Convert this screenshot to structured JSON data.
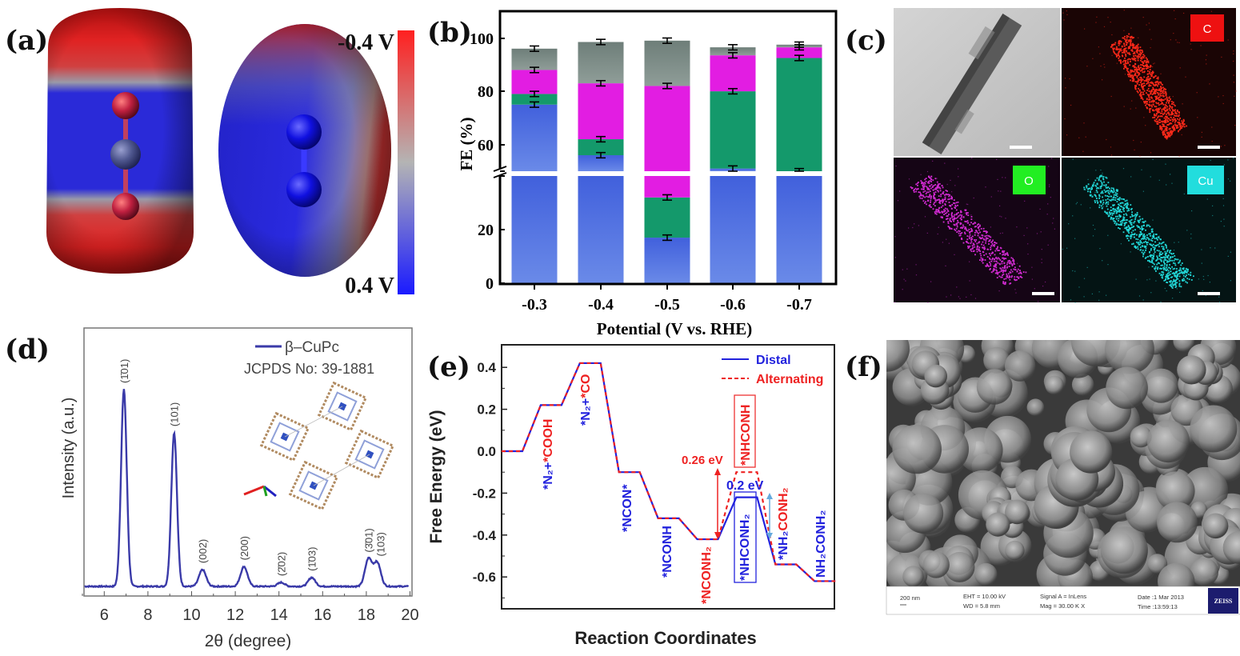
{
  "panels": {
    "a": {
      "label": "(a)",
      "colorbar": {
        "top_label": "-0.4 V",
        "bottom_label": "0.4 V",
        "colors": [
          "#ff2020",
          "#b4b4b4",
          "#1a1aff"
        ]
      }
    },
    "b": {
      "label": "(b)"
    },
    "c": {
      "label": "(c)",
      "maps": [
        {
          "element": "C",
          "color": "#ff2a1a"
        },
        {
          "element": "O",
          "color": "#d22bd2"
        },
        {
          "element": "Cu",
          "color": "#22d8d8"
        }
      ],
      "label_box_colors": {
        "C": "#ee1111",
        "O": "#22ee22",
        "Cu": "#22dddd"
      }
    },
    "d": {
      "label": "(d)"
    },
    "e": {
      "label": "(e)"
    },
    "f": {
      "label": "(f)",
      "footer": {
        "scale": "200 nm",
        "eht": "EHT = 10.00 kV",
        "wd": "WD =  5.8 mm",
        "signal": "Signal A = InLens",
        "mag": "Mag =  30.00 K X",
        "date": "Date :1 Mar 2013",
        "time": "Time :13:59:13",
        "logo": "ZEISS"
      }
    }
  },
  "chart_data": [
    {
      "id": "b",
      "type": "bar",
      "stacked": true,
      "xlabel": "Potential (V vs. RHE)",
      "ylabel": "FE (%)",
      "categories": [
        "-0.3",
        "-0.4",
        "-0.5",
        "-0.6",
        "-0.7"
      ],
      "yticks": [
        "0",
        "20",
        "60",
        "80",
        "100"
      ],
      "ylim": [
        0,
        110
      ],
      "axis_break": [
        40,
        50
      ],
      "series": [
        {
          "color": "#5478e4",
          "values": [
            75,
            56,
            17,
            51,
            50
          ]
        },
        {
          "color": "#14996b",
          "values": [
            4,
            6,
            15,
            29,
            42.5
          ]
        },
        {
          "color": "#e21de2",
          "values": [
            9,
            21,
            50,
            13.5,
            4
          ]
        },
        {
          "color": "#7e8e89",
          "values": [
            8,
            15.5,
            17,
            3,
            1
          ]
        }
      ],
      "error": 1
    },
    {
      "id": "d",
      "type": "line",
      "xlabel": "2θ (degree)",
      "ylabel": "Intensity (a.u.)",
      "xlim": [
        5,
        20
      ],
      "xticks": [
        "6",
        "8",
        "10",
        "12",
        "14",
        "16",
        "18",
        "20"
      ],
      "legend": {
        "series": "β–CuPc",
        "note": "JCPDS No: 39-1881",
        "position": "top-right"
      },
      "series_color": "#3a3aa8",
      "peaks": [
        {
          "x": 6.9,
          "intensity": 1.0,
          "label": "(1̄01)"
        },
        {
          "x": 9.2,
          "intensity": 0.78,
          "label": "(101)"
        },
        {
          "x": 10.5,
          "intensity": 0.085,
          "label": "(002)"
        },
        {
          "x": 12.4,
          "intensity": 0.1,
          "label": "(200)"
        },
        {
          "x": 14.1,
          "intensity": 0.02,
          "label": "(2̄02)"
        },
        {
          "x": 15.5,
          "intensity": 0.045,
          "label": "(1̄03)"
        },
        {
          "x": 18.1,
          "intensity": 0.14,
          "label": "(3̄01)"
        },
        {
          "x": 18.5,
          "intensity": 0.12,
          "label": "(103)"
        }
      ]
    },
    {
      "id": "e",
      "type": "line",
      "xlabel": "Reaction Coordinates",
      "ylabel": "Free Energy (eV)",
      "ylim": [
        -0.76,
        0.5
      ],
      "yticks": [
        "0.4",
        "0.2",
        "0.0",
        "-0.2",
        "-0.4",
        "-0.6"
      ],
      "series": [
        {
          "name": "Distal",
          "color": "#2222dd",
          "style": "solid",
          "values": [
            0.0,
            0.22,
            0.42,
            -0.1,
            -0.32,
            -0.42,
            -0.22,
            -0.54,
            -0.62
          ]
        },
        {
          "name": "Alternating",
          "color": "#ee2222",
          "style": "dashed",
          "values": [
            0.0,
            0.22,
            0.42,
            -0.1,
            -0.32,
            -0.42,
            -0.1,
            -0.54,
            -0.62
          ]
        }
      ],
      "state_labels": [
        [
          {
            "t": "*N₂+",
            "c": "#2222dd"
          },
          {
            "t": "*COOH",
            "c": "#ee2222"
          }
        ],
        [
          {
            "t": "*N₂+",
            "c": "#2222dd"
          },
          {
            "t": "*CO",
            "c": "#ee2222"
          }
        ],
        [
          {
            "t": "*NCON*",
            "c": "#2222dd"
          }
        ],
        [
          {
            "t": "*NCONH",
            "c": "#2222dd"
          }
        ],
        [
          {
            "t": "*NCONH₂",
            "c": "#ee2222"
          }
        ],
        [
          {
            "t": "*NHCONH₂",
            "c": "#2222dd"
          }
        ],
        [
          {
            "t": "*NHCONH",
            "c": "#ee2222"
          }
        ],
        [
          {
            "t": "*NH₂",
            "c": "#2222dd"
          },
          {
            "t": "CONH₂",
            "c": "#ee2222"
          }
        ],
        [
          {
            "t": "NH₂CONH₂",
            "c": "#2222dd"
          }
        ]
      ],
      "annotations": [
        {
          "text": "0.26 eV",
          "color": "#ee2222"
        },
        {
          "text": "0.2 eV",
          "color": "#2222dd"
        }
      ]
    }
  ]
}
